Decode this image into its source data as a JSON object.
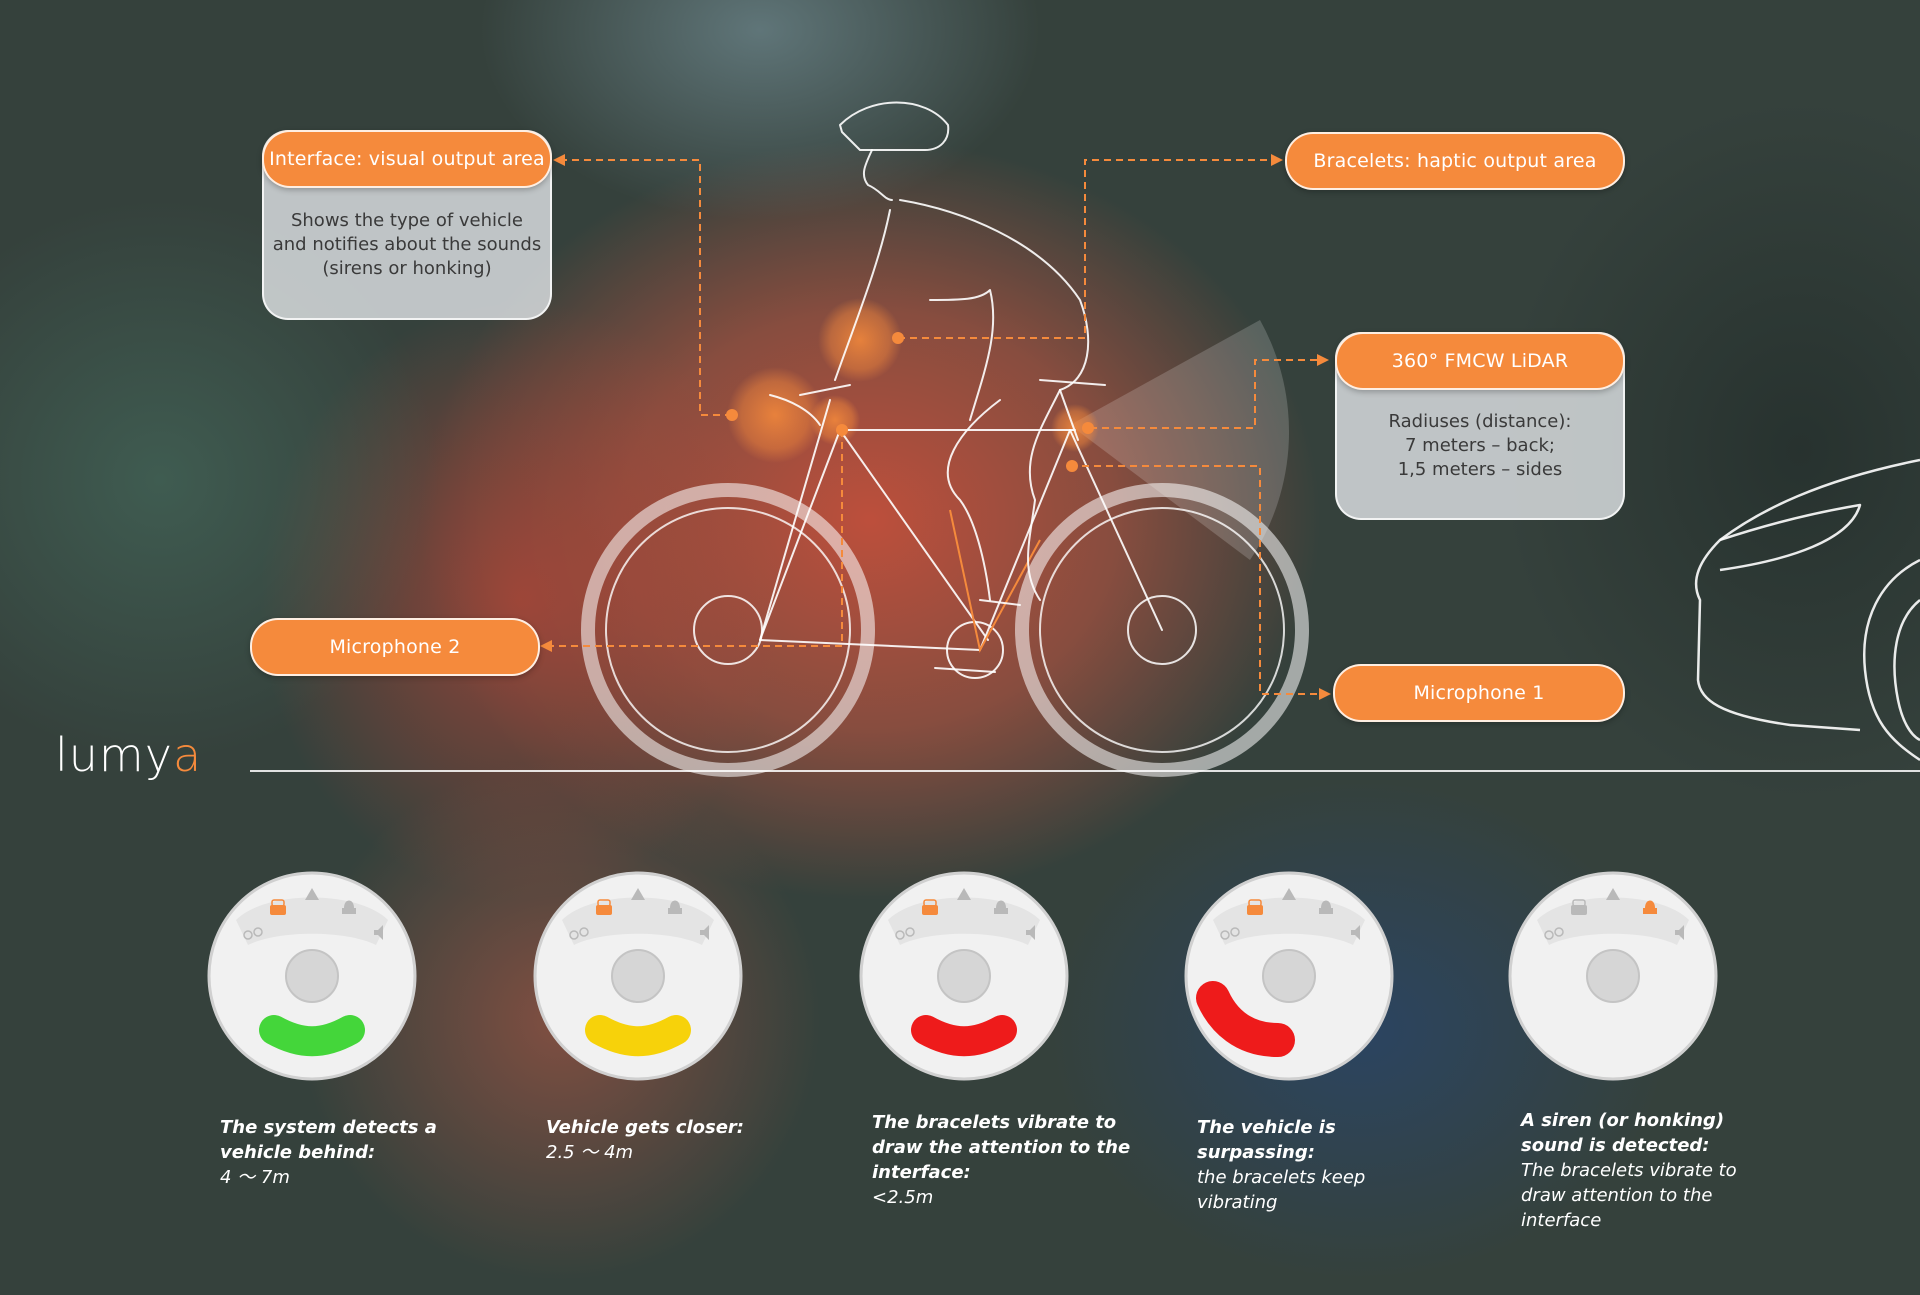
{
  "brand": {
    "logo_main": "lumy",
    "logo_accent": "a"
  },
  "colors": {
    "accent": "#f58a3c",
    "green": "#44d63a",
    "yellow": "#f7d20a",
    "red": "#ee1b1b",
    "siren": "#f58a3c"
  },
  "callouts": {
    "interface": {
      "title": "Interface: visual output area",
      "lines": [
        "Shows the type of vehicle",
        "and notifies about the sounds",
        "(sirens or honking)"
      ]
    },
    "bracelets": {
      "title": "Bracelets: haptic output area"
    },
    "lidar": {
      "title": "360° FMCW LiDAR",
      "lines": [
        "Radiuses (distance):",
        "7 meters – back;",
        "1,5 meters – sides"
      ]
    },
    "mic2": {
      "title": "Microphone 2"
    },
    "mic1": {
      "title": "Microphone 1"
    }
  },
  "states": [
    {
      "title_lines": [
        "The system detects a",
        "vehicle behind:"
      ],
      "detail_lines": [
        "4 〜 7m"
      ],
      "arc": "green",
      "car_active": true,
      "siren_active": false
    },
    {
      "title_lines": [
        "Vehicle gets closer:"
      ],
      "detail_lines": [
        "2.5 〜 4m"
      ],
      "arc": "yellow",
      "car_active": true,
      "siren_active": false
    },
    {
      "title_lines": [
        "The bracelets vibrate to",
        "draw the attention to the",
        "interface:"
      ],
      "detail_lines": [
        "<2.5m"
      ],
      "arc": "red",
      "car_active": true,
      "siren_active": false
    },
    {
      "title_lines": [
        "The vehicle is surpassing:"
      ],
      "detail_lines": [
        "the bracelets keep",
        "vibrating"
      ],
      "arc": "red-side",
      "car_active": true,
      "siren_active": false
    },
    {
      "title_lines": [
        "A siren (or honking)",
        "sound is detected:"
      ],
      "detail_lines": [
        "The bracelets vibrate to",
        "draw attention to the",
        "interface"
      ],
      "arc": "none",
      "car_active": false,
      "siren_active": true
    }
  ]
}
